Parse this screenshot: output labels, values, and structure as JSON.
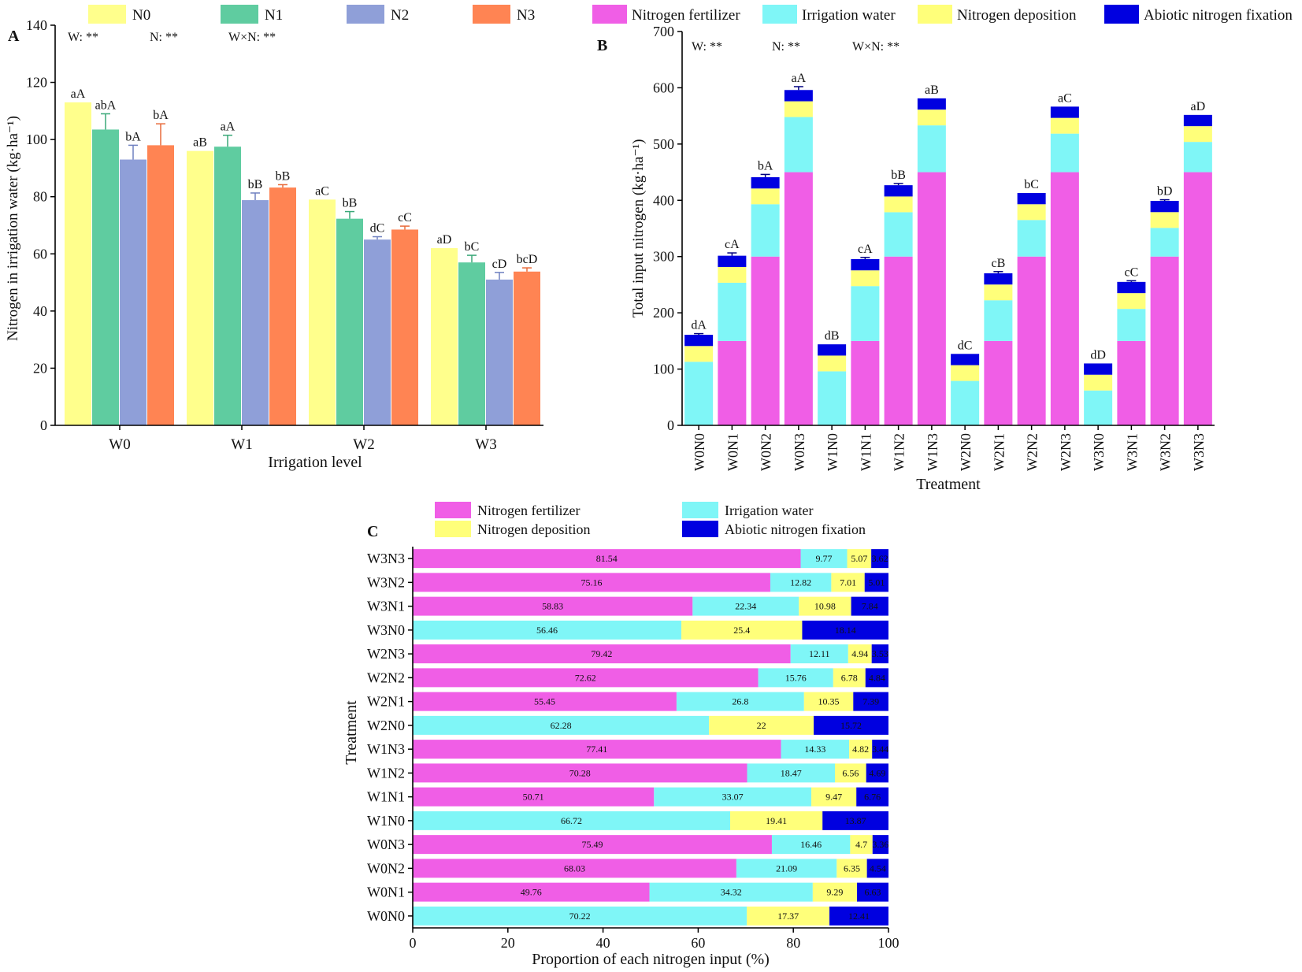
{
  "colors": {
    "N0": "#ffff8c",
    "N1": "#5fcca0",
    "N2": "#8f9fd8",
    "N3": "#ff8453",
    "fertilizer": "#f05ee6",
    "irrigation": "#7ff6f7",
    "deposition": "#ffff7a",
    "abiotic": "#0000e0",
    "axis": "#000000"
  },
  "chart_data": [
    {
      "id": "A",
      "type": "bar",
      "panel_label": "A",
      "xlabel": "Irrigation level",
      "ylabel": "Nitrogen in irrigation water (kg·ha⁻¹)",
      "ylim": [
        0,
        140
      ],
      "yticks": [
        0,
        20,
        40,
        60,
        80,
        100,
        120,
        140
      ],
      "categories": [
        "W0",
        "W1",
        "W2",
        "W3"
      ],
      "series": [
        {
          "name": "N0",
          "values": [
            113,
            96,
            79,
            62
          ],
          "errors": [
            0,
            0,
            0,
            0
          ],
          "letters": [
            "aA",
            "aB",
            "aC",
            "aD"
          ]
        },
        {
          "name": "N1",
          "values": [
            103.5,
            97.5,
            72.3,
            57
          ],
          "errors": [
            5.5,
            4,
            2.5,
            2.5
          ],
          "letters": [
            "abA",
            "aA",
            "bB",
            "bC"
          ]
        },
        {
          "name": "N2",
          "values": [
            93,
            78.8,
            65,
            51
          ],
          "errors": [
            5,
            2.5,
            1,
            2.5
          ],
          "letters": [
            "bA",
            "bB",
            "dC",
            "cD"
          ]
        },
        {
          "name": "N3",
          "values": [
            98,
            83.2,
            68.5,
            53.8
          ],
          "errors": [
            7.5,
            1,
            1.2,
            1.3
          ],
          "letters": [
            "bA",
            "bB",
            "cC",
            "bcD"
          ]
        }
      ],
      "significance": [
        "W: **",
        "N: **",
        "W×N: **"
      ],
      "legend": [
        "N0",
        "N1",
        "N2",
        "N3"
      ]
    },
    {
      "id": "B",
      "type": "bar",
      "stacked": true,
      "panel_label": "B",
      "xlabel": "Treatment",
      "ylabel": "Total input nitrogen (kg·ha⁻¹)",
      "ylim": [
        0,
        700
      ],
      "yticks": [
        0,
        100,
        200,
        300,
        400,
        500,
        600,
        700
      ],
      "categories": [
        "W0N0",
        "W0N1",
        "W0N2",
        "W0N3",
        "W1N0",
        "W1N1",
        "W1N2",
        "W1N3",
        "W2N0",
        "W2N1",
        "W2N2",
        "W2N3",
        "W3N0",
        "W3N1",
        "W3N2",
        "W3N3"
      ],
      "series": [
        {
          "name": "Nitrogen fertilizer",
          "values": [
            0,
            150,
            300,
            450,
            0,
            150,
            300,
            450,
            0,
            150,
            300,
            450,
            0,
            150,
            300,
            450
          ]
        },
        {
          "name": "Irrigation water",
          "values": [
            113,
            103.5,
            93,
            98,
            96,
            97.5,
            78.8,
            83.2,
            79,
            72.3,
            65,
            68.5,
            62,
            57,
            51,
            53.8
          ]
        },
        {
          "name": "Nitrogen deposition",
          "values": [
            28,
            28,
            28,
            28,
            28,
            28,
            28,
            28,
            28,
            28,
            28,
            28,
            28,
            28,
            28,
            28
          ]
        },
        {
          "name": "Abiotic nitrogen fixation",
          "values": [
            20,
            20,
            20,
            20,
            20,
            20,
            20,
            20,
            20,
            20,
            20,
            20,
            20,
            20,
            20,
            20
          ]
        }
      ],
      "errors": [
        2,
        5,
        5,
        6,
        0,
        3,
        3,
        0,
        0,
        3,
        0,
        0,
        0,
        2,
        2,
        0
      ],
      "letters": [
        "dA",
        "cA",
        "bA",
        "aA",
        "dB",
        "cA",
        "bB",
        "aB",
        "dC",
        "cB",
        "bC",
        "aC",
        "dD",
        "cC",
        "bD",
        "aD"
      ],
      "significance": [
        "W: **",
        "N: **",
        "W×N: **"
      ],
      "legend": [
        "Nitrogen fertilizer",
        "Irrigation water",
        "Nitrogen deposition",
        "Abiotic nitrogen fixation"
      ]
    },
    {
      "id": "C",
      "type": "bar",
      "orientation": "horizontal",
      "stacked": true,
      "panel_label": "C",
      "xlabel": "Proportion of each nitrogen input (%)",
      "ylabel": "Treatment",
      "xlim": [
        0,
        100
      ],
      "xticks": [
        0,
        20,
        40,
        60,
        80,
        100
      ],
      "categories": [
        "W3N3",
        "W3N2",
        "W3N1",
        "W3N0",
        "W2N3",
        "W2N2",
        "W2N1",
        "W2N0",
        "W1N3",
        "W1N2",
        "W1N1",
        "W1N0",
        "W0N3",
        "W0N2",
        "W0N1",
        "W0N0"
      ],
      "series": [
        {
          "name": "Nitrogen fertilizer",
          "values": [
            81.54,
            75.16,
            58.83,
            0,
            79.42,
            72.62,
            55.45,
            0,
            77.41,
            70.28,
            50.71,
            0,
            75.49,
            68.03,
            49.76,
            0
          ]
        },
        {
          "name": "Irrigation water",
          "values": [
            9.77,
            12.82,
            22.34,
            56.46,
            12.11,
            15.76,
            26.8,
            62.28,
            14.33,
            18.47,
            33.07,
            66.72,
            16.46,
            21.09,
            34.32,
            70.22
          ]
        },
        {
          "name": "Nitrogen deposition",
          "values": [
            5.07,
            7.01,
            10.98,
            25.4,
            4.94,
            6.78,
            10.35,
            22,
            4.82,
            6.56,
            9.47,
            19.41,
            4.7,
            6.35,
            9.29,
            17.37
          ]
        },
        {
          "name": "Abiotic nitrogen fixation",
          "values": [
            3.62,
            5.01,
            7.84,
            18.14,
            3.53,
            4.84,
            7.39,
            15.72,
            3.44,
            4.69,
            6.76,
            13.87,
            3.36,
            4.54,
            6.63,
            12.41
          ]
        }
      ],
      "legend": [
        "Nitrogen fertilizer",
        "Irrigation water",
        "Nitrogen deposition",
        "Abiotic nitrogen fixation"
      ]
    }
  ]
}
